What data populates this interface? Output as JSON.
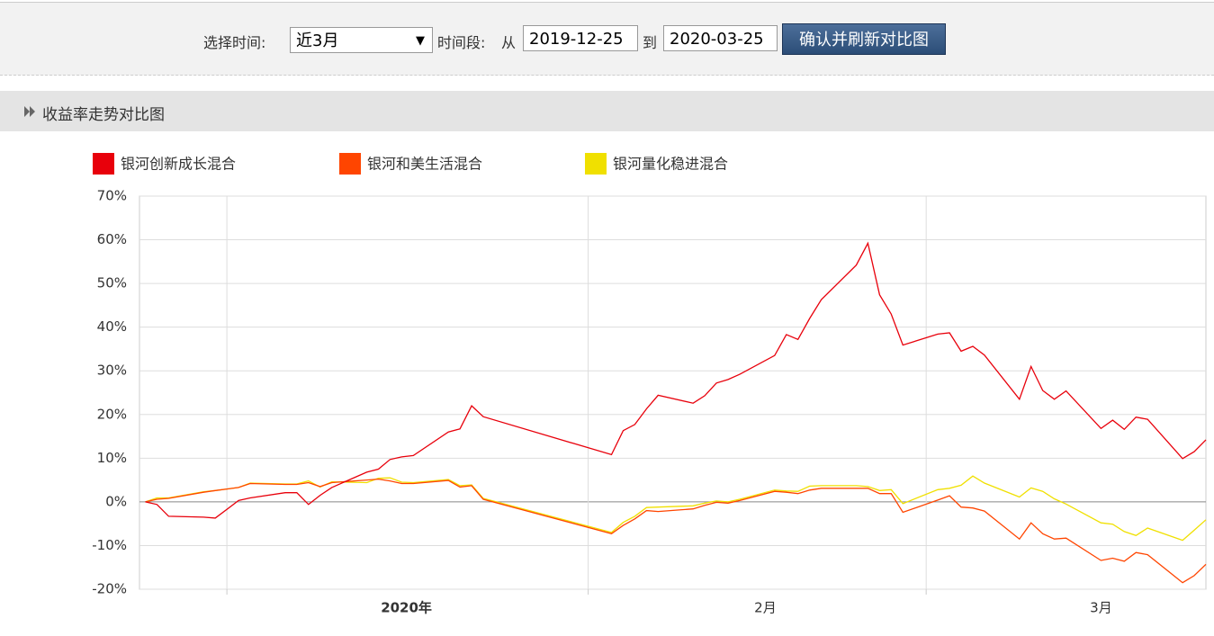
{
  "toolbar": {
    "time_label": "选择时间:",
    "select": "近3月",
    "period_label": "时间段:",
    "from": "从",
    "start": "2019-12-25",
    "to": "到",
    "end": "2020-03-25",
    "button": "确认并刷新对比图"
  },
  "section": {
    "title": "收益率走势对比图"
  },
  "chart_data": {
    "type": "line",
    "x": [
      0,
      1,
      2,
      5,
      6,
      8,
      9,
      12,
      13,
      14,
      15,
      16,
      19,
      20,
      21,
      22,
      23,
      26,
      27,
      28,
      29,
      40,
      41,
      42,
      43,
      44,
      47,
      48,
      49,
      50,
      51,
      54,
      55,
      56,
      57,
      58,
      61,
      62,
      63,
      64,
      65,
      68,
      69,
      70,
      71,
      72,
      75,
      76,
      77,
      78,
      79,
      82,
      83,
      84,
      85,
      86,
      89,
      90,
      91
    ],
    "series": [
      {
        "name": "银河创新成长混合",
        "color": "#e8000b",
        "values": [
          0,
          -0.6,
          -3.3,
          -3.5,
          -3.7,
          0.3,
          0.9,
          2.1,
          2.1,
          -0.6,
          1.5,
          3.3,
          6.8,
          7.5,
          9.7,
          10.3,
          10.6,
          16,
          16.7,
          22,
          19.5,
          10.8,
          16.3,
          17.7,
          21.3,
          24.4,
          22.6,
          24.3,
          27.2,
          28,
          29.2,
          33.5,
          38.3,
          37.2,
          42,
          46.3,
          54.2,
          59.2,
          47.4,
          43,
          35.9,
          38.4,
          38.7,
          34.5,
          35.6,
          33.6,
          23.5,
          31,
          25.5,
          23.5,
          25.4,
          16.8,
          18.7,
          16.6,
          19.4,
          18.9,
          9.9,
          11.5,
          14.2
        ]
      },
      {
        "name": "银河和美生活混合",
        "color": "#ff4500",
        "values": [
          0,
          0.6,
          0.8,
          2.2,
          2.6,
          3.3,
          4.2,
          4.0,
          4.0,
          4.4,
          3.5,
          4.4,
          5.0,
          5.2,
          4.8,
          4.2,
          4.2,
          4.9,
          3.4,
          3.7,
          0.6,
          -7.3,
          -5.4,
          -3.9,
          -2.0,
          -2.2,
          -1.6,
          -0.8,
          -0.1,
          -0.3,
          0.3,
          2.4,
          2.2,
          1.9,
          2.7,
          3.1,
          3.1,
          3.1,
          1.9,
          1.9,
          -2.4,
          0.4,
          1.4,
          -1.2,
          -1.4,
          -2.1,
          -8.5,
          -4.8,
          -7.3,
          -8.5,
          -8.3,
          -13.4,
          -12.9,
          -13.6,
          -11.6,
          -12.1,
          -18.5,
          -16.9,
          -14.3
        ]
      },
      {
        "name": "银河量化稳进混合",
        "color": "#f0e000",
        "values": [
          0,
          0.9,
          0.9,
          2.3,
          2.6,
          3.3,
          4.3,
          4.1,
          4.1,
          4.8,
          3.4,
          4.6,
          4.4,
          5.4,
          5.5,
          4.5,
          4.4,
          5.1,
          3.7,
          3.9,
          0.8,
          -7.0,
          -4.7,
          -3.3,
          -1.3,
          -1.2,
          -0.9,
          -0.3,
          0.2,
          0.0,
          0.6,
          2.7,
          2.5,
          2.4,
          3.6,
          3.7,
          3.7,
          3.5,
          2.6,
          2.8,
          -0.4,
          2.8,
          3.1,
          3.8,
          5.9,
          4.3,
          1.1,
          3.2,
          2.4,
          0.7,
          -0.5,
          -4.8,
          -5.1,
          -6.8,
          -7.7,
          -6.0,
          -8.8,
          -6.5,
          -4.1
        ]
      }
    ],
    "xlim": [
      -0.5,
      91
    ],
    "xticks": [
      {
        "value": 22.4,
        "label": "2020年"
      },
      {
        "value": 53.2,
        "label": "2月"
      },
      {
        "value": 82,
        "label": "3月"
      }
    ],
    "xgrid": [
      7,
      38,
      67
    ],
    "ylim": [
      -20,
      70
    ],
    "yticks": [
      {
        "value": -20,
        "label": "-20%"
      },
      {
        "value": -10,
        "label": "-10%"
      },
      {
        "value": 0,
        "label": "0%"
      },
      {
        "value": 10,
        "label": "10%"
      },
      {
        "value": 20,
        "label": "20%"
      },
      {
        "value": 30,
        "label": "30%"
      },
      {
        "value": 40,
        "label": "40%"
      },
      {
        "value": 50,
        "label": "50%"
      },
      {
        "value": 60,
        "label": "60%"
      },
      {
        "value": 70,
        "label": "70%"
      }
    ],
    "grid": true,
    "legend": "top"
  }
}
